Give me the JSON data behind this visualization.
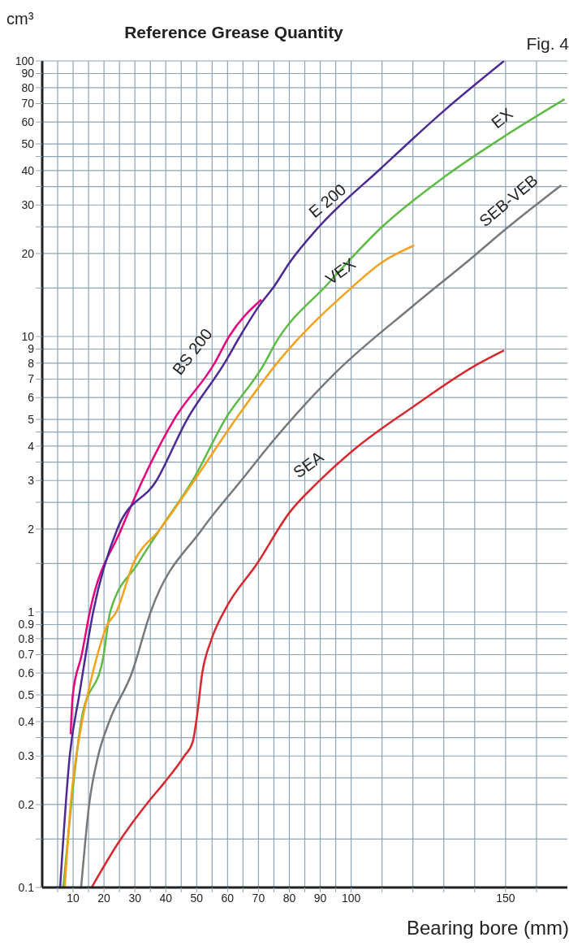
{
  "chart_data": {
    "type": "line",
    "title": "Reference Grease Quantity",
    "ylabel": "cm³",
    "xlabel": "Bearing bore (mm)",
    "annotations": [
      "Fig. 4"
    ],
    "log": "y",
    "grid": true,
    "legend": false,
    "marker": "none",
    "line_style": "solid",
    "xlim": [
      0,
      170
    ],
    "xticks": [
      {
        "value": 5,
        "label": null
      },
      10,
      {
        "value": 15,
        "label": null
      },
      20,
      {
        "value": 25,
        "label": null
      },
      30,
      {
        "value": 35,
        "label": null
      },
      40,
      {
        "value": 45,
        "label": null
      },
      50,
      {
        "value": 55,
        "label": null
      },
      60,
      {
        "value": 65,
        "label": null
      },
      70,
      {
        "value": 75,
        "label": null
      },
      80,
      {
        "value": 85,
        "label": null
      },
      90,
      {
        "value": 95,
        "label": null
      },
      100,
      {
        "value": 110,
        "label": null
      },
      {
        "value": 120,
        "label": null
      },
      {
        "value": 130,
        "label": null
      },
      {
        "value": 140,
        "label": null
      },
      150,
      {
        "value": 160,
        "label": null
      }
    ],
    "ylim": [
      0.1,
      100
    ],
    "yticks": [
      0.1,
      {
        "value": 0.15,
        "label": null
      },
      0.2,
      {
        "value": 0.25,
        "label": null
      },
      0.3,
      {
        "value": 0.35,
        "label": null
      },
      0.4,
      {
        "value": 0.45,
        "label": null
      },
      0.5,
      0.6,
      0.7,
      0.8,
      0.9,
      1,
      {
        "value": 1.5,
        "label": null
      },
      2,
      {
        "value": 2.5,
        "label": null
      },
      3,
      {
        "value": 3.5,
        "label": null
      },
      4,
      {
        "value": 4.5,
        "label": null
      },
      5,
      6,
      7,
      8,
      9,
      10,
      {
        "value": 15,
        "label": null
      },
      20,
      {
        "value": 25,
        "label": null
      },
      30,
      {
        "value": 35,
        "label": null
      },
      40,
      {
        "value": 45,
        "label": null
      },
      50,
      60,
      70,
      80,
      90,
      100
    ],
    "series": [
      {
        "name": "BS 200",
        "color": "#e6007e",
        "x": [
          9.2,
          9.9,
          12.8,
          15.4,
          25.6,
          42.7,
          55.8,
          60.5,
          70.9
        ],
        "values": [
          0.36,
          0.5,
          0.7,
          1,
          2,
          5,
          8,
          10,
          13.6
        ]
      },
      {
        "name": "E 200",
        "color": "#4b2a93",
        "x": [
          5.8,
          8.9,
          12,
          16.5,
          24.3,
          37,
          46.9,
          59,
          64,
          70.4,
          74.9,
          80,
          89.3,
          109.7,
          129.8,
          149.5
        ],
        "values": [
          0.1,
          0.3,
          0.5,
          1,
          2,
          3,
          5,
          8,
          10,
          13,
          15.1,
          18.5,
          24.8,
          40.8,
          65.6,
          100
        ]
      },
      {
        "name": "EX",
        "color": "#5dbb46",
        "x": [
          6.8,
          9.4,
          12.6,
          19.9,
          22,
          31,
          38.2,
          48.7,
          59.2,
          72,
          74.9,
          92.4,
          109.7,
          130.4,
          150,
          169.1
        ],
        "values": [
          0.1,
          0.2,
          0.4,
          0.7,
          1,
          1.5,
          2,
          3,
          5,
          8,
          9.2,
          15.5,
          24.8,
          38.1,
          53.6,
          72.6
        ]
      },
      {
        "name": "VEX",
        "color": "#f7a11a",
        "x": [
          7.3,
          9.2,
          12.9,
          14.7,
          19.9,
          20.7,
          24,
          29.5,
          38.2,
          49.2,
          62.6,
          76,
          100.3,
          109.7,
          120.4
        ],
        "values": [
          0.1,
          0.2,
          0.4,
          0.5,
          0.83,
          0.88,
          1,
          1.5,
          2,
          3,
          5,
          8,
          15.1,
          18.5,
          21.4
        ]
      },
      {
        "name": "SEB-VEB",
        "color": "#77787b",
        "x": [
          12.6,
          15.2,
          18.1,
          21.7,
          29,
          35.1,
          51.8,
          64.4,
          74.9,
          95,
          120,
          139.8,
          150,
          168
        ],
        "values": [
          0.1,
          0.2,
          0.3,
          0.4,
          0.6,
          1,
          2,
          3,
          4.2,
          7.4,
          12.9,
          19.6,
          24.5,
          35.4
        ]
      },
      {
        "name": "SEA",
        "color": "#d7282f",
        "x": [
          16,
          24.6,
          34.3,
          39.5,
          46,
          48.7,
          50,
          51.8,
          54.7,
          59.2,
          69.6,
          80.1,
          89.3,
          101,
          120.2,
          139.8,
          149.5
        ],
        "values": [
          0.1,
          0.145,
          0.204,
          0.24,
          0.3,
          0.337,
          0.41,
          0.6,
          0.79,
          1.02,
          1.5,
          2.3,
          2.96,
          3.89,
          5.57,
          7.8,
          8.9
        ]
      }
    ]
  }
}
